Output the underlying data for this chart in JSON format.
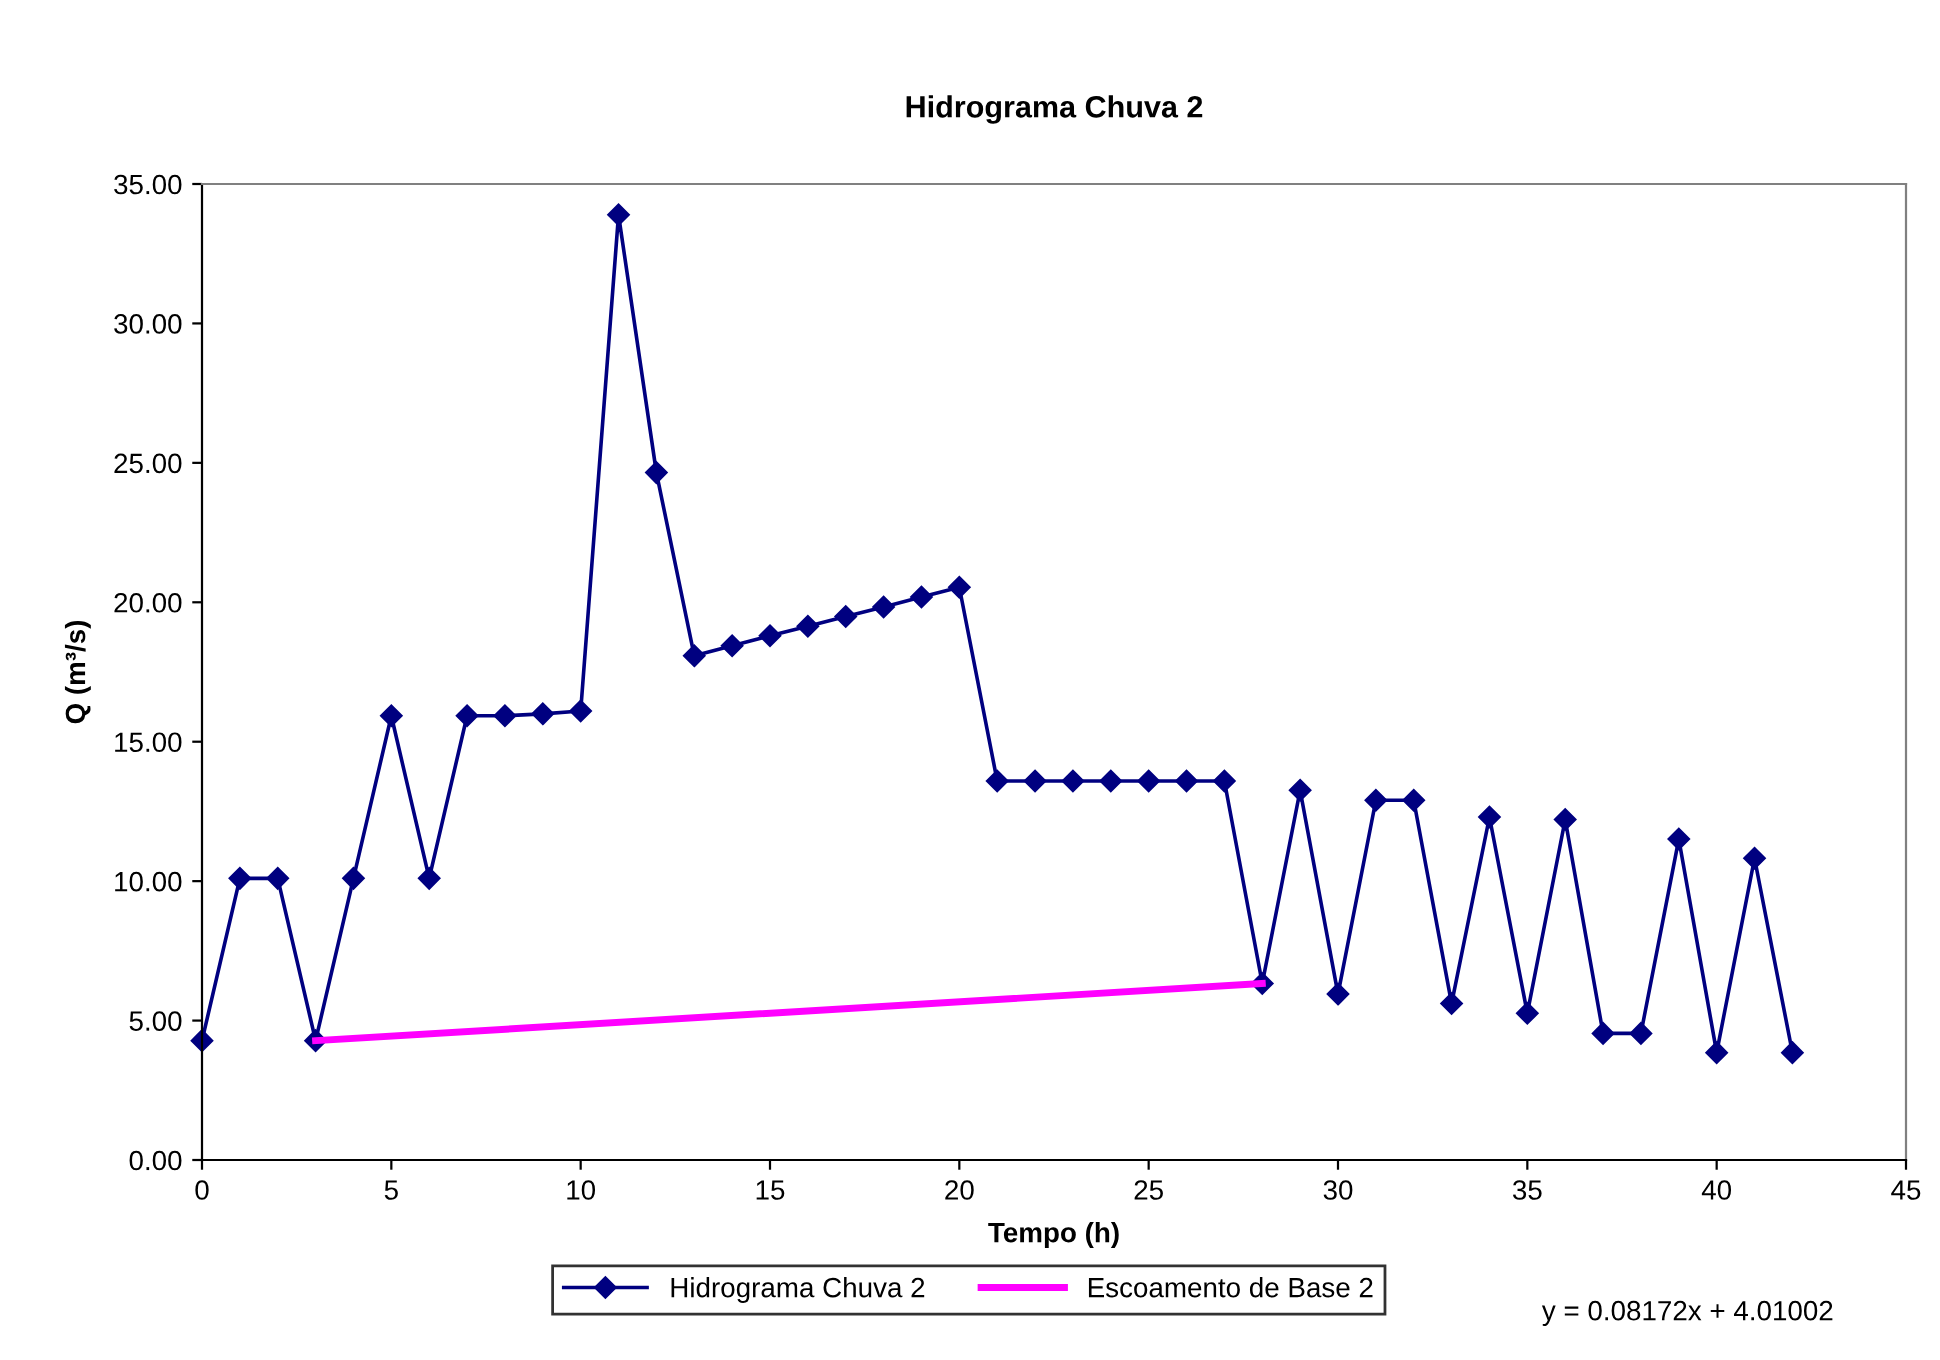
{
  "chart_data": {
    "type": "line",
    "title": "Hidrograma Chuva 2",
    "xlabel": "Tempo (h)",
    "ylabel": "Q (m³/s)",
    "xlim": [
      0,
      45
    ],
    "xticks": [
      0,
      5,
      10,
      15,
      20,
      25,
      30,
      35,
      40,
      45
    ],
    "ylim": [
      0,
      35
    ],
    "yticks": [
      {
        "value": 0,
        "label": "0.00"
      },
      {
        "value": 5,
        "label": "5.00"
      },
      {
        "value": 10,
        "label": "10.00"
      },
      {
        "value": 15,
        "label": "15.00"
      },
      {
        "value": 20,
        "label": "20.00"
      },
      {
        "value": 25,
        "label": "25.00"
      },
      {
        "value": 30,
        "label": "30.00"
      },
      {
        "value": 35,
        "label": "35.00"
      }
    ],
    "grid": false,
    "legend": "bottom",
    "line_style": "solid",
    "series": [
      {
        "name": "Hidrograma Chuva 2",
        "color": "#000080",
        "marker": "diamond",
        "x": [
          0,
          1,
          2,
          3,
          4,
          5,
          6,
          7,
          8,
          9,
          10,
          11,
          12,
          13,
          14,
          15,
          16,
          17,
          18,
          19,
          20,
          21,
          22,
          23,
          24,
          25,
          26,
          27,
          28,
          29,
          30,
          31,
          32,
          33,
          34,
          35,
          36,
          37,
          38,
          39,
          40,
          41,
          42
        ],
        "values": [
          4.28,
          10.1,
          10.1,
          4.28,
          10.1,
          15.93,
          10.1,
          15.93,
          15.93,
          16.0,
          16.1,
          33.9,
          24.65,
          18.08,
          18.44,
          18.8,
          19.14,
          19.49,
          19.83,
          20.19,
          20.54,
          13.59,
          13.59,
          13.59,
          13.59,
          13.59,
          13.59,
          13.59,
          6.33,
          13.26,
          5.95,
          12.9,
          12.9,
          5.61,
          12.3,
          5.26,
          12.21,
          4.54,
          4.54,
          11.51,
          3.85,
          10.82,
          3.85
        ]
      },
      {
        "name": "Escoamento de Base 2",
        "color": "#ff00ff",
        "marker": "none",
        "x": [
          3,
          28
        ],
        "values": [
          4.28,
          6.33
        ]
      }
    ],
    "annotations": [
      "y = 0.08172x + 4.01002"
    ]
  }
}
